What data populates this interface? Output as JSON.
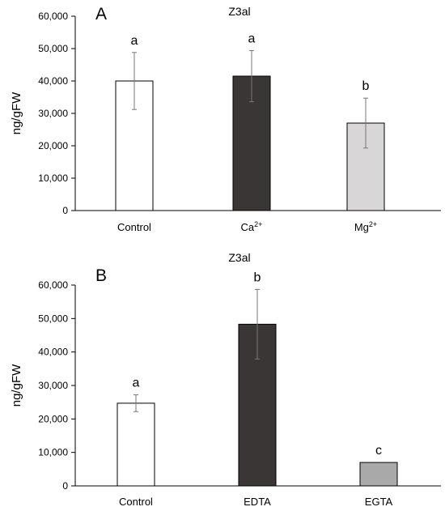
{
  "chart_data": [
    {
      "type": "bar",
      "panel_label": "A",
      "title": "Z3al",
      "ylabel": "ng/gFW",
      "ylim": [
        0,
        60000
      ],
      "yticks": [
        "0",
        "10,000",
        "20,000",
        "30,000",
        "40,000",
        "50,000",
        "60,000"
      ],
      "categories": [
        {
          "base": "Control",
          "sup": ""
        },
        {
          "base": "Ca",
          "sup": "2+"
        },
        {
          "base": "Mg",
          "sup": "2+"
        }
      ],
      "values": [
        40000,
        41500,
        27000
      ],
      "errors": [
        8800,
        7900,
        7700
      ],
      "letters": [
        "a",
        "a",
        "b"
      ],
      "colors": [
        "#ffffff",
        "#3a3636",
        "#d9d6d8"
      ]
    },
    {
      "type": "bar",
      "panel_label": "B",
      "title": "Z3al",
      "ylabel": "ng/gFW",
      "ylim": [
        0,
        60000
      ],
      "yticks": [
        "0",
        "10,000",
        "20,000",
        "30,000",
        "40,000",
        "50,000",
        "60,000"
      ],
      "categories": [
        {
          "base": "Control",
          "sup": ""
        },
        {
          "base": "EDTA",
          "sup": ""
        },
        {
          "base": "EGTA",
          "sup": ""
        }
      ],
      "values": [
        24700,
        48300,
        7000
      ],
      "errors": [
        2500,
        10400,
        0
      ],
      "letters": [
        "a",
        "b",
        "c"
      ],
      "colors": [
        "#ffffff",
        "#3a3636",
        "#a9a9a9"
      ]
    }
  ]
}
